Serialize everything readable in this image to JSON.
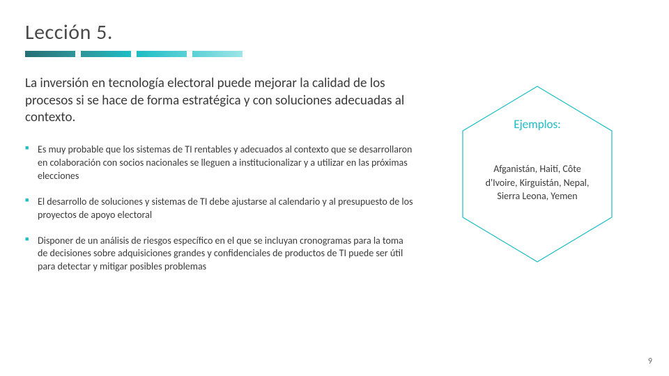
{
  "title": "Lección 5.",
  "subtitle": "La inversión en tecnología electoral puede mejorar la calidad de los procesos si se hace de forma estratégica y con soluciones adecuadas al contexto.",
  "bullets": [
    "Es muy probable que los sistemas de TI rentables y adecuados al contexto que se desarrollaron en colaboración con socios nacionales se lleguen a institucionalizar y a utilizar en las próximas elecciones",
    "El desarrollo de soluciones y sistemas de TI debe ajustarse al calendario y al presupuesto de los proyectos de apoyo electoral",
    "Disponer de un análisis de riesgos específico en el que se incluyan cronogramas para la toma de decisiones sobre adquisiciones grandes y confidenciales de productos de TI puede ser útil para detectar y mitigar posibles problemas"
  ],
  "hexagon": {
    "label": "Ejemplos:",
    "countries": "Afganistán, Haití, Côte d'Ivoire, Kirguistán, Nepal, Sierra Leona, Yemen",
    "stroke_color": "#1dbdc4",
    "label_color": "#1dbdc4"
  },
  "accent_bars": {
    "colors": [
      "#2a8a8f",
      "#2a8a8f",
      "#1dbdc4",
      "#1dbdc4"
    ],
    "gradients": [
      [
        "#246f74",
        "#2f9599"
      ],
      [
        "#2f9599",
        "#1dbdc4"
      ],
      [
        "#1dbdc4",
        "#5ad1d6"
      ],
      [
        "#5ad1d6",
        "#9de5e8"
      ]
    ]
  },
  "bullet_marker_color": "#1dbdc4",
  "page_number": "9",
  "text_color": "#3a3a3a",
  "background_color": "#ffffff"
}
